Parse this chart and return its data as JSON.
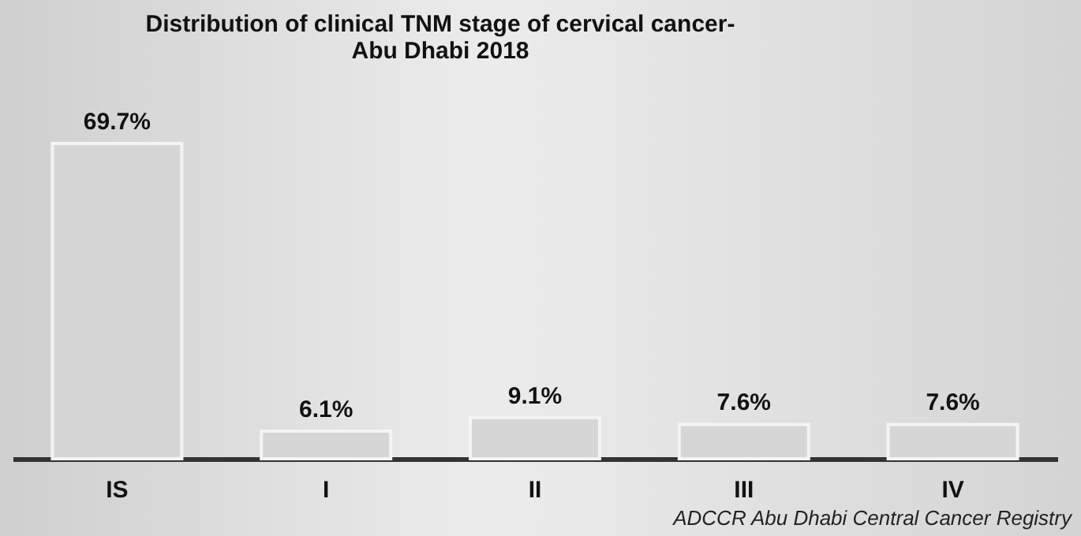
{
  "chart_data": {
    "type": "bar",
    "title": "Distribution of clinical TNM stage of cervical cancer-\nAbu Dhabi 2018",
    "categories": [
      "IS",
      "I",
      "II",
      "III",
      "IV"
    ],
    "values": [
      69.7,
      6.1,
      9.1,
      7.6,
      7.6
    ],
    "value_labels": [
      "69.7%",
      "6.1%",
      "9.1%",
      "7.6%",
      "7.6%"
    ],
    "color": "#d6d6d6",
    "annotations": [
      "ADCCR Abu Dhabi Central Cancer Registry"
    ]
  }
}
